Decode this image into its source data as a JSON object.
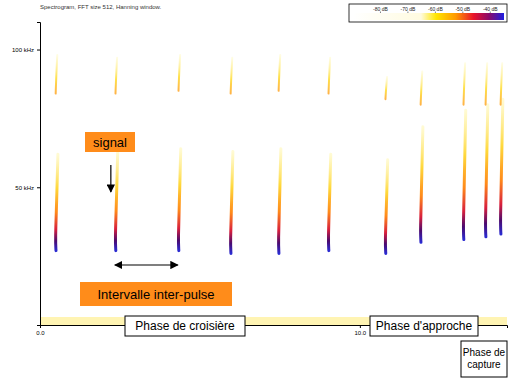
{
  "chart_data": {
    "type": "spectrogram",
    "title": "Spectrogram, FFT size 512, Hanning window.",
    "xlim": [
      0,
      14.6
    ],
    "xticks": [
      {
        "value": 0,
        "label": "0.0"
      },
      {
        "value": 10,
        "label": "10.0"
      }
    ],
    "ylim": [
      0,
      110
    ],
    "yticks": [
      {
        "value": 50,
        "label": "50 kHz"
      },
      {
        "value": 100,
        "label": "100 kHz"
      }
    ],
    "pulses": {
      "t": [
        0.47,
        2.34,
        4.31,
        5.94,
        7.44,
        9.0,
        10.78,
        11.88,
        13.22,
        13.91,
        14.38
      ],
      "f_high": [
        62,
        63,
        64,
        63,
        64,
        62,
        60,
        72,
        78,
        80,
        82
      ],
      "f_low": [
        27,
        27,
        27,
        26,
        26,
        27,
        26,
        30,
        31,
        32,
        33
      ],
      "harmonic_high": [
        98,
        97,
        98,
        97,
        98,
        97,
        90,
        92,
        95,
        95,
        95
      ],
      "harmonic_low": [
        84,
        84,
        85,
        84,
        85,
        84,
        82,
        80,
        80,
        80,
        80
      ]
    },
    "colorbar": {
      "range": [
        -90,
        -35
      ],
      "ticks": [
        {
          "value": -80,
          "label": "-80 dB"
        },
        {
          "value": -70,
          "label": "-70 dB"
        },
        {
          "value": -60,
          "label": "-60 dB"
        },
        {
          "value": -50,
          "label": "-50 dB"
        },
        {
          "value": -40,
          "label": "-40 dB"
        }
      ]
    },
    "annotations": {
      "signal": "signal",
      "interval": "Intervalle inter-pulse",
      "phases": [
        "Phase de croisière",
        "Phase d'approche",
        "Phase de capture"
      ]
    }
  }
}
